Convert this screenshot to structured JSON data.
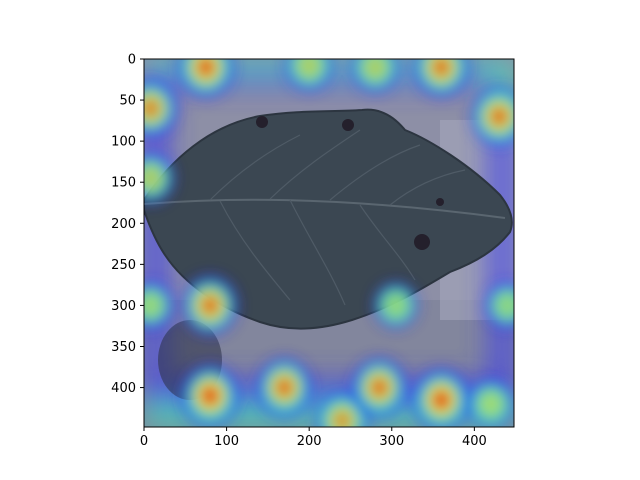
{
  "chart_data": {
    "type": "heatmap",
    "title": "",
    "xlabel": "",
    "ylabel": "",
    "description": "Grad-CAM style heatmap (jet colormap, semi-transparent) overlaid on a photo of a serrated leaf",
    "xlim": [
      0,
      448
    ],
    "ylim": [
      448,
      0
    ],
    "xticks": [
      0,
      100,
      200,
      300,
      400
    ],
    "yticks": [
      0,
      50,
      100,
      150,
      200,
      250,
      300,
      350,
      400
    ],
    "colormap": "jet",
    "hotspots": [
      {
        "x": 75,
        "y": 10,
        "intensity": 0.9
      },
      {
        "x": 200,
        "y": 8,
        "intensity": 0.55
      },
      {
        "x": 280,
        "y": 10,
        "intensity": 0.55
      },
      {
        "x": 360,
        "y": 10,
        "intensity": 0.85
      },
      {
        "x": 8,
        "y": 60,
        "intensity": 0.8
      },
      {
        "x": 430,
        "y": 70,
        "intensity": 0.85
      },
      {
        "x": 8,
        "y": 145,
        "intensity": 0.55
      },
      {
        "x": 80,
        "y": 300,
        "intensity": 0.85
      },
      {
        "x": 8,
        "y": 300,
        "intensity": 0.45
      },
      {
        "x": 440,
        "y": 300,
        "intensity": 0.4
      },
      {
        "x": 305,
        "y": 300,
        "intensity": 0.4
      },
      {
        "x": 80,
        "y": 410,
        "intensity": 0.95
      },
      {
        "x": 170,
        "y": 400,
        "intensity": 0.85
      },
      {
        "x": 240,
        "y": 440,
        "intensity": 0.75
      },
      {
        "x": 285,
        "y": 400,
        "intensity": 0.85
      },
      {
        "x": 360,
        "y": 415,
        "intensity": 0.95
      },
      {
        "x": 420,
        "y": 420,
        "intensity": 0.5
      }
    ]
  },
  "colors": {
    "background_photo": "#8c8ea2",
    "leaf": "#3c4852",
    "cold": "#2d2df0",
    "mid": "#3ce6b4",
    "warm": "#f0e63c",
    "hot": "#e0401c"
  }
}
